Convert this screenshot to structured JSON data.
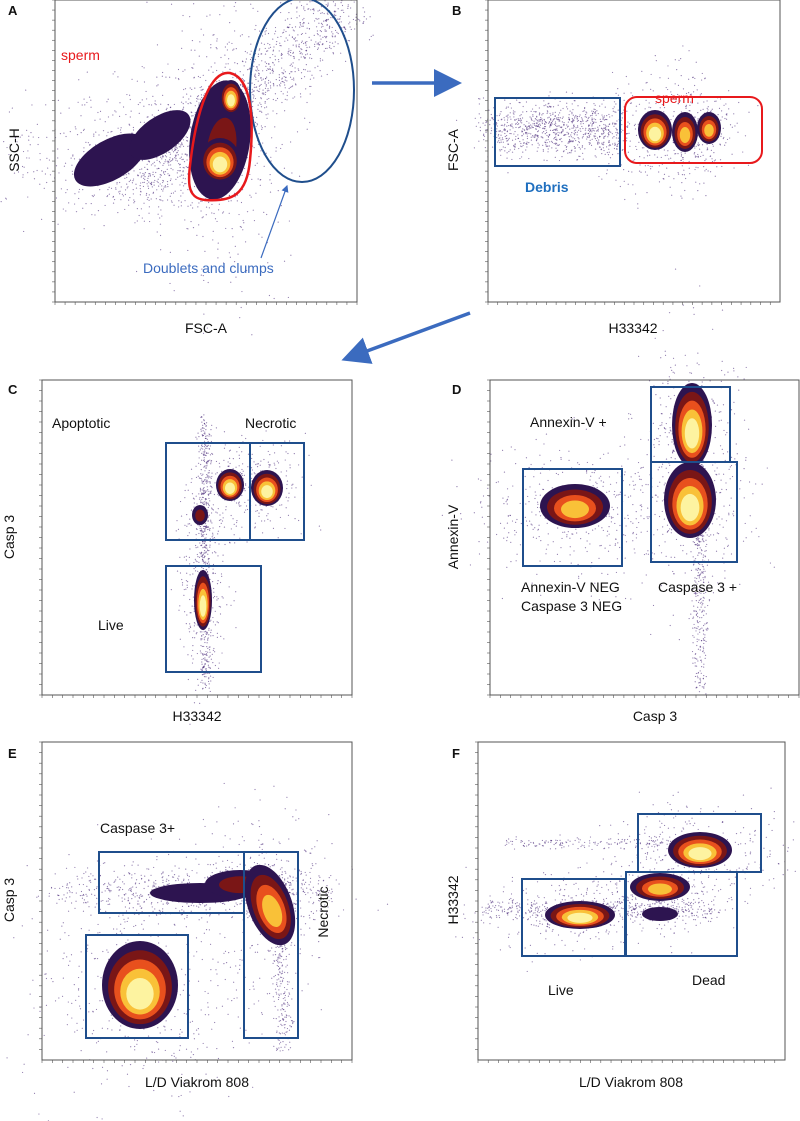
{
  "colors": {
    "gate_blue": "#1f4e8c",
    "gate_red": "#e8191c",
    "annotation_blue": "#3b6bbf",
    "density": [
      "#2d1450",
      "#7a1616",
      "#e8501d",
      "#f9c138",
      "#fdf3a0"
    ]
  },
  "chart_data": [
    {
      "panel": "A",
      "type": "scatter",
      "style": "density",
      "xlabel": "FSC-A",
      "ylabel": "SSC-H",
      "xscale": "log",
      "yscale": "log",
      "annotations": {
        "sperm": "sperm",
        "doublets": "Doublets and clumps"
      }
    },
    {
      "panel": "B",
      "type": "scatter",
      "style": "density",
      "xlabel": "H33342",
      "ylabel": "FSC-A",
      "xscale": "biexponential",
      "yscale": "log",
      "annotations": {
        "sperm": "sperm",
        "debris": "Debris"
      }
    },
    {
      "panel": "C",
      "type": "scatter",
      "style": "density",
      "xlabel": "H33342",
      "ylabel": "Casp 3",
      "xscale": "biexponential",
      "yscale": "biexponential",
      "annotations": {
        "apoptotic": "Apoptotic",
        "necrotic": "Necrotic",
        "live": "Live"
      }
    },
    {
      "panel": "D",
      "type": "scatter",
      "style": "density",
      "xlabel": "Casp 3",
      "ylabel": "Annexin-V",
      "xscale": "biexponential",
      "yscale": "biexponential",
      "annotations": {
        "annexin_pos": "Annexin-V +",
        "neg1": "Annexin-V NEG",
        "neg2": "Caspase 3 NEG",
        "casp_pos": "Caspase 3 +"
      }
    },
    {
      "panel": "E",
      "type": "scatter",
      "style": "density",
      "xlabel": "L/D Viakrom 808",
      "ylabel": "Casp 3",
      "xscale": "biexponential",
      "yscale": "biexponential",
      "annotations": {
        "casp_pos": "Caspase 3+",
        "necrotic": "Necrotic"
      }
    },
    {
      "panel": "F",
      "type": "scatter",
      "style": "density",
      "xlabel": "L/D Viakrom 808",
      "ylabel": "H33342",
      "xscale": "biexponential",
      "yscale": "biexponential",
      "annotations": {
        "live": "Live",
        "dead": "Dead"
      }
    }
  ]
}
